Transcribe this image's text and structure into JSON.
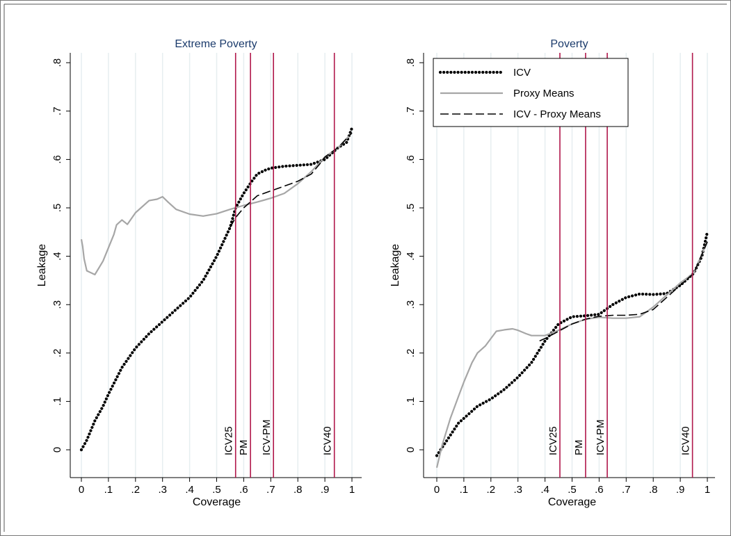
{
  "chart_data": [
    {
      "type": "line",
      "title": "Extreme Poverty",
      "xlabel": "Coverage",
      "ylabel": "Leakage",
      "xlim": [
        0,
        1
      ],
      "ylim": [
        -0.05,
        0.82
      ],
      "xticks": [
        0,
        0.1,
        0.2,
        0.3,
        0.4,
        0.5,
        0.6,
        0.7,
        0.8,
        0.9,
        1
      ],
      "xtick_labels": [
        "0",
        ".1",
        ".2",
        ".3",
        ".4",
        ".5",
        ".6",
        ".7",
        ".8",
        ".9",
        "1"
      ],
      "yticks": [
        0,
        0.1,
        0.2,
        0.3,
        0.4,
        0.5,
        0.6,
        0.7,
        0.8
      ],
      "ytick_labels": [
        "0",
        ".1",
        ".2",
        ".3",
        ".4",
        ".5",
        ".6",
        ".7",
        ".8"
      ],
      "grid": true,
      "legend": false,
      "vlines": [
        {
          "x": 0.57,
          "label": "ICV25"
        },
        {
          "x": 0.625,
          "label": "PM"
        },
        {
          "x": 0.71,
          "label": "ICV-PM"
        },
        {
          "x": 0.935,
          "label": "ICV40"
        }
      ],
      "series": [
        {
          "key": "icv",
          "x": [
            0,
            0.02,
            0.05,
            0.08,
            0.1,
            0.15,
            0.2,
            0.25,
            0.3,
            0.35,
            0.4,
            0.45,
            0.5,
            0.55,
            0.57,
            0.6,
            0.63,
            0.65,
            0.68,
            0.7,
            0.75,
            0.8,
            0.85,
            0.9,
            0.95,
            0.98,
            1
          ],
          "y": [
            0,
            0.02,
            0.06,
            0.09,
            0.115,
            0.17,
            0.21,
            0.24,
            0.265,
            0.29,
            0.315,
            0.35,
            0.4,
            0.46,
            0.5,
            0.53,
            0.555,
            0.57,
            0.578,
            0.582,
            0.586,
            0.588,
            0.59,
            0.6,
            0.625,
            0.635,
            0.665
          ]
        },
        {
          "key": "pm",
          "x": [
            0,
            0.005,
            0.01,
            0.02,
            0.05,
            0.08,
            0.12,
            0.13,
            0.15,
            0.17,
            0.2,
            0.25,
            0.28,
            0.3,
            0.32,
            0.35,
            0.4,
            0.45,
            0.5,
            0.55,
            0.6,
            0.65,
            0.7,
            0.75,
            0.8,
            0.85,
            0.9,
            0.95,
            1
          ],
          "y": [
            0.435,
            0.42,
            0.395,
            0.37,
            0.362,
            0.39,
            0.445,
            0.465,
            0.475,
            0.466,
            0.49,
            0.515,
            0.518,
            0.523,
            0.512,
            0.497,
            0.487,
            0.483,
            0.488,
            0.497,
            0.505,
            0.512,
            0.52,
            0.53,
            0.55,
            0.575,
            0.605,
            0.625,
            0.655
          ]
        },
        {
          "key": "icvpm",
          "x": [
            0.55,
            0.57,
            0.6,
            0.63,
            0.65,
            0.7,
            0.75,
            0.8,
            0.85,
            0.88,
            0.9,
            0.95,
            1
          ],
          "y": [
            0.46,
            0.48,
            0.5,
            0.515,
            0.525,
            0.535,
            0.545,
            0.555,
            0.57,
            0.59,
            0.605,
            0.625,
            0.655
          ]
        }
      ]
    },
    {
      "type": "line",
      "title": "Poverty",
      "xlabel": "Coverage",
      "ylabel": "Leakage",
      "xlim": [
        0,
        1
      ],
      "ylim": [
        -0.05,
        0.82
      ],
      "xticks": [
        0,
        0.1,
        0.2,
        0.3,
        0.4,
        0.5,
        0.6,
        0.7,
        0.8,
        0.9,
        1
      ],
      "xtick_labels": [
        "0",
        ".1",
        ".2",
        ".3",
        ".4",
        ".5",
        ".6",
        ".7",
        ".8",
        ".9",
        "1"
      ],
      "yticks": [
        0,
        0.1,
        0.2,
        0.3,
        0.4,
        0.5,
        0.6,
        0.7,
        0.8
      ],
      "ytick_labels": [
        "0",
        ".1",
        ".2",
        ".3",
        ".4",
        ".5",
        ".6",
        ".7",
        ".8"
      ],
      "grid": true,
      "legend": true,
      "legend_position": "top-left",
      "vlines": [
        {
          "x": 0.455,
          "label": "ICV25"
        },
        {
          "x": 0.55,
          "label": "PM"
        },
        {
          "x": 0.63,
          "label": "ICV-PM"
        },
        {
          "x": 0.945,
          "label": "ICV40"
        }
      ],
      "series": [
        {
          "key": "icv",
          "name": "ICV",
          "x": [
            0,
            0.02,
            0.05,
            0.08,
            0.1,
            0.15,
            0.2,
            0.25,
            0.3,
            0.35,
            0.4,
            0.45,
            0.5,
            0.55,
            0.6,
            0.65,
            0.7,
            0.75,
            0.8,
            0.85,
            0.9,
            0.95,
            0.98,
            1
          ],
          "y": [
            -0.012,
            0.005,
            0.03,
            0.055,
            0.065,
            0.09,
            0.105,
            0.125,
            0.15,
            0.18,
            0.225,
            0.26,
            0.275,
            0.277,
            0.28,
            0.3,
            0.315,
            0.322,
            0.321,
            0.323,
            0.34,
            0.365,
            0.4,
            0.45
          ]
        },
        {
          "key": "pm",
          "name": "Proxy Means",
          "x": [
            0,
            0.02,
            0.05,
            0.08,
            0.1,
            0.13,
            0.15,
            0.18,
            0.2,
            0.22,
            0.25,
            0.28,
            0.3,
            0.33,
            0.35,
            0.4,
            0.45,
            0.5,
            0.55,
            0.6,
            0.65,
            0.7,
            0.75,
            0.8,
            0.85,
            0.9,
            0.95,
            1
          ],
          "y": [
            -0.037,
            0.01,
            0.065,
            0.11,
            0.14,
            0.18,
            0.2,
            0.215,
            0.23,
            0.245,
            0.248,
            0.25,
            0.247,
            0.24,
            0.236,
            0.236,
            0.247,
            0.26,
            0.27,
            0.274,
            0.272,
            0.272,
            0.275,
            0.295,
            0.32,
            0.345,
            0.365,
            0.43
          ]
        },
        {
          "key": "icvpm",
          "name": "ICV - Proxy Means",
          "x": [
            0.38,
            0.4,
            0.45,
            0.5,
            0.55,
            0.6,
            0.65,
            0.7,
            0.75,
            0.8,
            0.85,
            0.9,
            0.95,
            1
          ],
          "y": [
            0.225,
            0.23,
            0.245,
            0.26,
            0.27,
            0.276,
            0.278,
            0.278,
            0.28,
            0.29,
            0.315,
            0.34,
            0.365,
            0.43
          ]
        }
      ]
    }
  ],
  "colors": {
    "icv": "#000000",
    "pm": "#a6a6a6",
    "icvpm": "#000000",
    "vline": "#b0164a",
    "grid": "#e6eef0",
    "title": "#1a3a6b"
  }
}
